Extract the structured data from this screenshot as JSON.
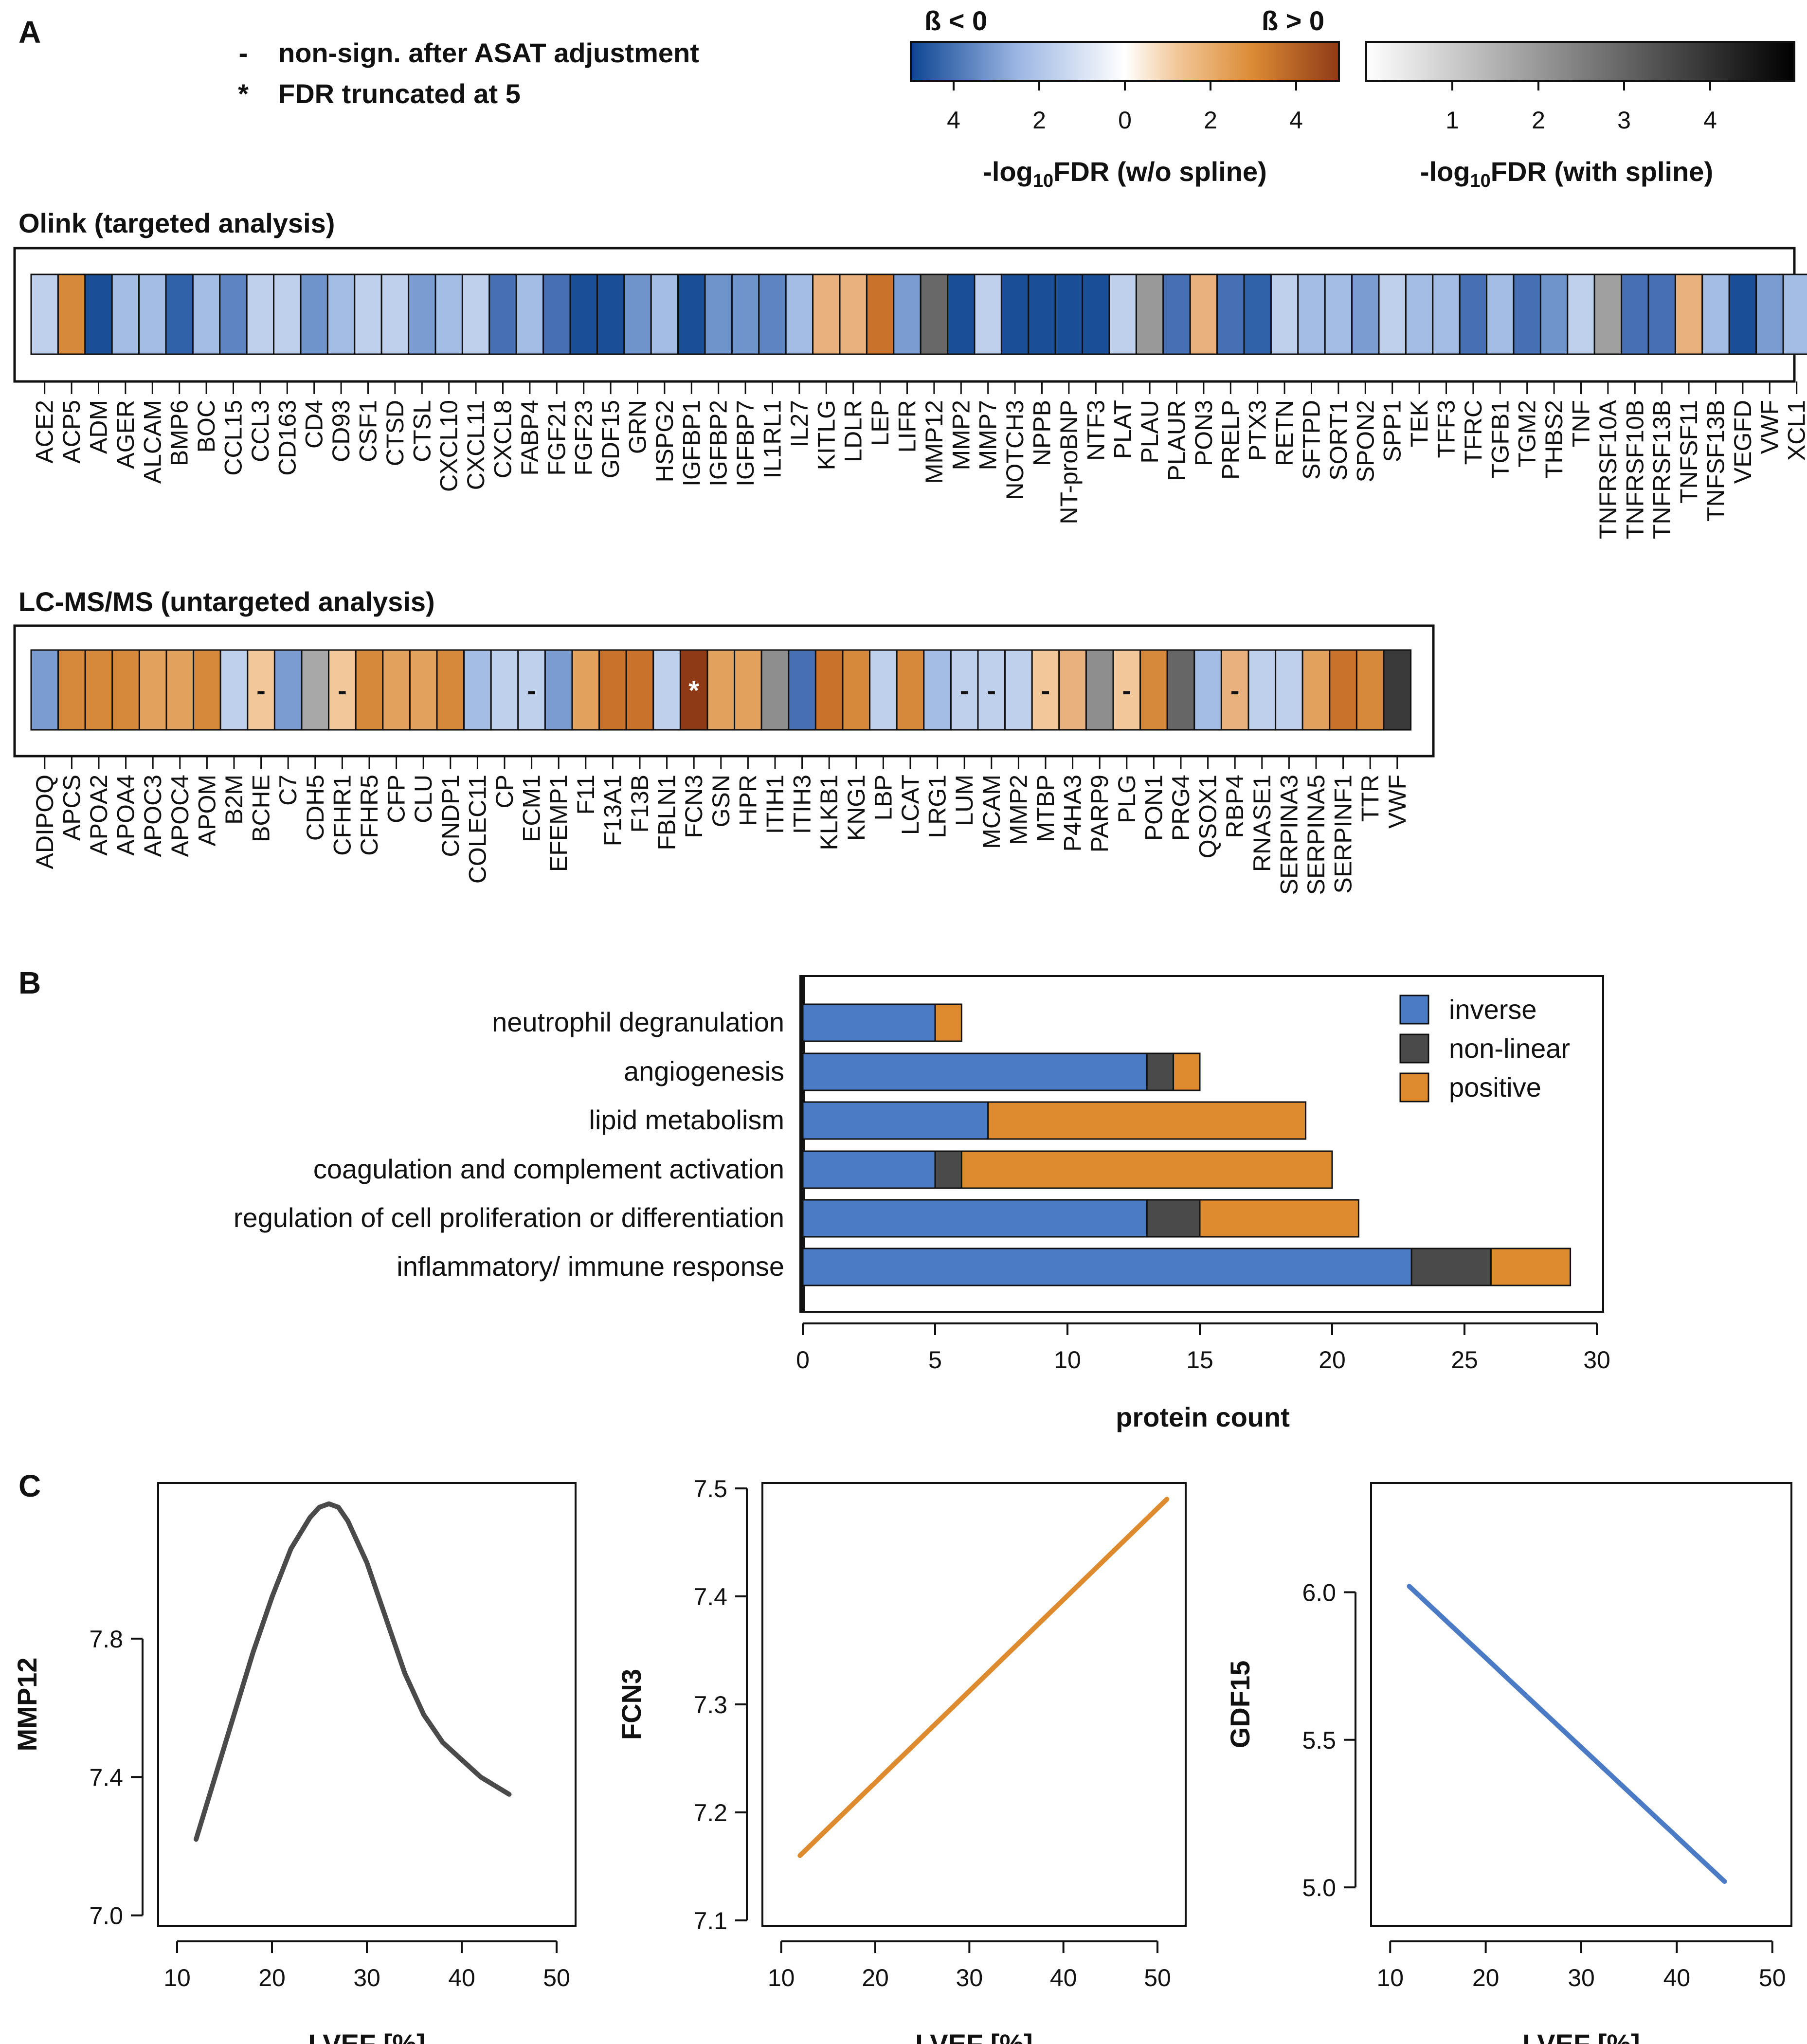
{
  "panels": {
    "a": "A",
    "b": "B",
    "c": "C"
  },
  "legend_notes": [
    {
      "symbol": "-",
      "text": "non-sign. after ASAT adjustment"
    },
    {
      "symbol": "*",
      "text": "FDR truncated at 5"
    }
  ],
  "colorbar_beta": {
    "neg_label": "ß < 0",
    "pos_label": "ß > 0",
    "ticks": [
      "4",
      "2",
      "0",
      "2",
      "4"
    ],
    "title_main": "-log",
    "title_sub": "10",
    "title_end": "FDR (w/o spline)",
    "colors": {
      "neg_dark": "#0d4593",
      "neg_light": "#9cb6e3",
      "white": "#ffffff",
      "pos_light": "#f2c89a",
      "pos_mid": "#db8a34",
      "pos_dark": "#8f3a17"
    }
  },
  "colorbar_spline": {
    "ticks": [
      "1",
      "2",
      "3",
      "4"
    ],
    "title_main": "-log",
    "title_sub": "10",
    "title_end": "FDR (with spline)",
    "colors": {
      "light": "#ffffff",
      "dark": "#000000"
    }
  },
  "olink": {
    "title": "Olink (targeted analysis)",
    "genes": [
      "ACE2",
      "ACP5",
      "ADM",
      "AGER",
      "ALCAM",
      "BMP6",
      "BOC",
      "CCL15",
      "CCL3",
      "CD163",
      "CD4",
      "CD93",
      "CSF1",
      "CTSD",
      "CTSL",
      "CXCL10",
      "CXCL11",
      "CXCL8",
      "FABP4",
      "FGF21",
      "FGF23",
      "GDF15",
      "GRN",
      "HSPG2",
      "IGFBP1",
      "IGFBP2",
      "IGFBP7",
      "IL1RL1",
      "IL27",
      "KITLG",
      "LDLR",
      "LEP",
      "LIFR",
      "MMP12",
      "MMP2",
      "MMP7",
      "NOTCH3",
      "NPPB",
      "NT-proBNP",
      "NTF3",
      "PLAT",
      "PLAU",
      "PLAUR",
      "PON3",
      "PRELP",
      "PTX3",
      "RETN",
      "SFTPD",
      "SORT1",
      "SPON2",
      "SPP1",
      "TEK",
      "TFF3",
      "TFRC",
      "TGFB1",
      "TGM2",
      "THBS2",
      "TNF",
      "TNFRSF10A",
      "TNFRSF10B",
      "TNFRSF13B",
      "TNFSF11",
      "TNFSF13B",
      "VEGFD",
      "VWF",
      "XCL1"
    ],
    "colors": [
      "#bfd0ec",
      "#d7893b",
      "#1a4f97",
      "#a4bde5",
      "#a4bde5",
      "#2f62a9",
      "#a4bde5",
      "#5e84c2",
      "#bfd0ec",
      "#bfd0ec",
      "#6f93cb",
      "#a4bde5",
      "#bfd0ec",
      "#bfd0ec",
      "#7b9cd1",
      "#a4bde5",
      "#bfd0ec",
      "#4770b4",
      "#a4bde5",
      "#4770b4",
      "#1a4f97",
      "#1a4f97",
      "#6f93cb",
      "#a4bde5",
      "#1a4f97",
      "#6f93cb",
      "#6f93cb",
      "#5e84c2",
      "#a4bde5",
      "#e9b17d",
      "#e9b17d",
      "#c8722c",
      "#7b9cd1",
      "#686868",
      "#1a4f97",
      "#bfd0ec",
      "#1a4f97",
      "#1a4f97",
      "#1a4f97",
      "#1a4f97",
      "#bfd0ec",
      "#999999",
      "#4770b4",
      "#e9b17d",
      "#4770b4",
      "#2f62a9",
      "#bfd0ec",
      "#a4bde5",
      "#a4bde5",
      "#7b9cd1",
      "#bfd0ec",
      "#a4bde5",
      "#a4bde5",
      "#4770b4",
      "#a4bde5",
      "#4770b4",
      "#6f93cb",
      "#bfd0ec",
      "#a0a0a0",
      "#4770b4",
      "#4770b4",
      "#e9b17d",
      "#a4bde5",
      "#1a4f97",
      "#7b9cd1",
      "#a4bde5"
    ]
  },
  "lcms": {
    "title": "LC-MS/MS (untargeted analysis)",
    "genes": [
      "ADIPOQ",
      "APCS",
      "APOA2",
      "APOA4",
      "APOC3",
      "APOC4",
      "APOM",
      "B2M",
      "BCHE",
      "C7",
      "CDH5",
      "CFHR1",
      "CFHR5",
      "CFP",
      "CLU",
      "CNDP1",
      "COLEC11",
      "CP",
      "ECM1",
      "EFEMP1",
      "F11",
      "F13A1",
      "F13B",
      "FBLN1",
      "FCN3",
      "GSN",
      "HPR",
      "ITIH1",
      "ITIH3",
      "KLKB1",
      "KNG1",
      "LBP",
      "LCAT",
      "LRG1",
      "LUM",
      "MCAM",
      "MMP2",
      "MTBP",
      "P4HA3",
      "PARP9",
      "PLG",
      "PON1",
      "PRG4",
      "QSOX1",
      "RBP4",
      "RNASE1",
      "SERPINA3",
      "SERPINA5",
      "SERPINF1",
      "TTR",
      "VWF"
    ],
    "colors": [
      "#7b9cd1",
      "#d7893b",
      "#d7893b",
      "#d7893b",
      "#e3a15e",
      "#e3a15e",
      "#d7893b",
      "#bfd0ec",
      "#f2c89a",
      "#7b9cd1",
      "#a8a8a8",
      "#f2c89a",
      "#d7893b",
      "#e3a15e",
      "#e3a15e",
      "#d7893b",
      "#a4bde5",
      "#bfd0ec",
      "#bfd0ec",
      "#7b9cd1",
      "#e3a15e",
      "#c8722c",
      "#c8722c",
      "#bfd0ec",
      "#8f3a17",
      "#e3a15e",
      "#e3a15e",
      "#8e8e8e",
      "#4770b4",
      "#c8722c",
      "#d7893b",
      "#bfd0ec",
      "#d7893b",
      "#a4bde5",
      "#bfd0ec",
      "#bfd0ec",
      "#bfd0ec",
      "#f2c89a",
      "#e9b17d",
      "#8e8e8e",
      "#f2c89a",
      "#d7893b",
      "#666666",
      "#a4bde5",
      "#e9b17d",
      "#bfd0ec",
      "#bfd0ec",
      "#e3a15e",
      "#c8722c",
      "#d7893b",
      "#3a3a3a"
    ],
    "marks": [
      "",
      "",
      "",
      "",
      "",
      "",
      "",
      "",
      "-",
      "",
      "",
      "-",
      "",
      "",
      "",
      "",
      "",
      "",
      "-",
      "",
      "",
      "",
      "",
      "",
      "*",
      "",
      "",
      "",
      "",
      "",
      "",
      "",
      "",
      "",
      "-",
      "-",
      "",
      "-",
      "",
      "",
      "-",
      "",
      "",
      "",
      "-",
      "",
      "",
      "",
      "",
      "",
      ""
    ],
    "mark_colors": [
      "#111111",
      "#ffffff"
    ]
  },
  "chart_data": [
    {
      "type": "bar",
      "orientation": "horizontal",
      "stacked": true,
      "categories": [
        "neutrophil degranulation",
        "angiogenesis",
        "lipid metabolism",
        "coagulation and complement activation",
        "regulation of cell proliferation or differentiation",
        "inflammatory/ immune response"
      ],
      "series": [
        {
          "name": "inverse",
          "values": [
            5,
            13,
            7,
            5,
            13,
            23
          ],
          "color": "#4a7bc4"
        },
        {
          "name": "non-linear",
          "values": [
            0,
            1,
            0,
            1,
            2,
            3
          ],
          "color": "#4a4a4a"
        },
        {
          "name": "positive",
          "values": [
            1,
            1,
            12,
            14,
            6,
            3
          ],
          "color": "#de8a2e"
        }
      ],
      "xlabel": "protein count",
      "xlim": [
        0,
        30
      ],
      "xticks": [
        "0",
        "5",
        "10",
        "15",
        "20",
        "25",
        "30"
      ],
      "legend": "top-right"
    },
    {
      "type": "line",
      "title": "",
      "ylabel": "MMP12",
      "xlabel": "LVEF [%]",
      "xlim": [
        8,
        52
      ],
      "ylim": [
        6.97,
        8.25
      ],
      "xticks": [
        "10",
        "20",
        "30",
        "40",
        "50"
      ],
      "yticks": [
        "7.0",
        "7.4",
        "7.8"
      ],
      "color": "#4a4a4a",
      "x": [
        12,
        14,
        16,
        18,
        20,
        22,
        24,
        25,
        26,
        27,
        28,
        30,
        32,
        34,
        36,
        38,
        40,
        42,
        45
      ],
      "y": [
        7.22,
        7.4,
        7.58,
        7.76,
        7.92,
        8.06,
        8.15,
        8.18,
        8.19,
        8.18,
        8.14,
        8.02,
        7.86,
        7.7,
        7.58,
        7.5,
        7.45,
        7.4,
        7.35
      ]
    },
    {
      "type": "line",
      "title": "",
      "ylabel": "FCN3",
      "xlabel": "LVEF [%]",
      "xlim": [
        8,
        53
      ],
      "ylim": [
        7.095,
        7.505
      ],
      "xticks": [
        "10",
        "20",
        "30",
        "40",
        "50"
      ],
      "yticks": [
        "7.1",
        "7.2",
        "7.3",
        "7.4",
        "7.5"
      ],
      "color": "#de8a2e",
      "x": [
        12,
        51
      ],
      "y": [
        7.16,
        7.49
      ]
    },
    {
      "type": "line",
      "title": "",
      "ylabel": "GDF15",
      "xlabel": "LVEF [%]",
      "xlim": [
        8,
        52
      ],
      "ylim": [
        4.87,
        6.37
      ],
      "xticks": [
        "10",
        "20",
        "30",
        "40",
        "50"
      ],
      "yticks": [
        "5.0",
        "5.5",
        "6.0"
      ],
      "color": "#4a7bc4",
      "x": [
        12,
        45
      ],
      "y": [
        6.02,
        5.02
      ]
    }
  ]
}
